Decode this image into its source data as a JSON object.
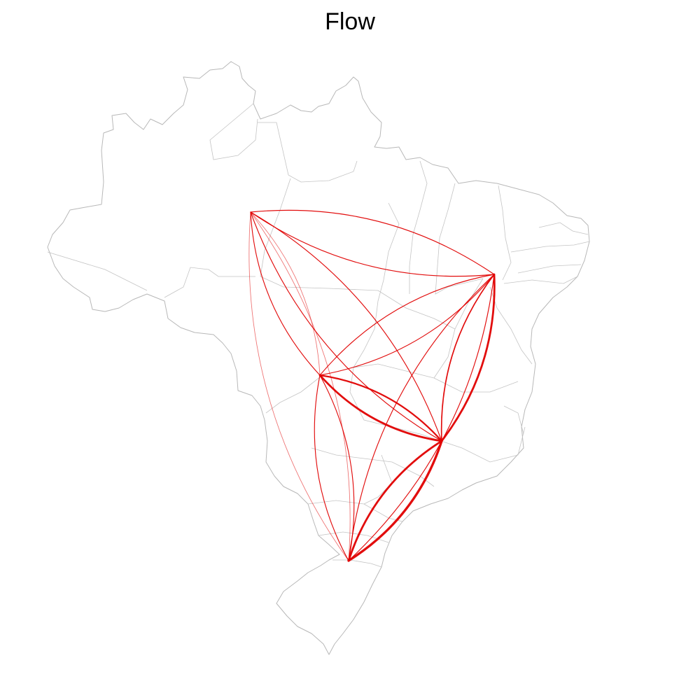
{
  "title": "Flow",
  "colors": {
    "flow": "#e00000",
    "border": "#b8b8b8",
    "background": "#ffffff"
  },
  "nodes": [
    {
      "id": "A"
    },
    {
      "id": "B"
    },
    {
      "id": "C"
    },
    {
      "id": "D"
    },
    {
      "id": "E"
    }
  ],
  "flows": [
    {
      "from": "E",
      "to": "D",
      "weight": 5
    },
    {
      "from": "D",
      "to": "E",
      "weight": 4
    },
    {
      "from": "D",
      "to": "B",
      "weight": 4
    },
    {
      "from": "B",
      "to": "D",
      "weight": 2
    },
    {
      "from": "C",
      "to": "D",
      "weight": 4
    },
    {
      "from": "D",
      "to": "C",
      "weight": 3
    },
    {
      "from": "A",
      "to": "D",
      "weight": 1
    },
    {
      "from": "D",
      "to": "A",
      "weight": 1
    },
    {
      "from": "A",
      "to": "C",
      "weight": 1
    },
    {
      "from": "C",
      "to": "A",
      "weight": 0.5
    },
    {
      "from": "A",
      "to": "B",
      "weight": 1
    },
    {
      "from": "B",
      "to": "A",
      "weight": 1
    },
    {
      "from": "A",
      "to": "E",
      "weight": 0.5
    },
    {
      "from": "E",
      "to": "A",
      "weight": 0.5
    },
    {
      "from": "B",
      "to": "C",
      "weight": 1
    },
    {
      "from": "C",
      "to": "B",
      "weight": 1
    },
    {
      "from": "B",
      "to": "E",
      "weight": 1
    },
    {
      "from": "E",
      "to": "B",
      "weight": 1
    },
    {
      "from": "C",
      "to": "E",
      "weight": 1
    },
    {
      "from": "E",
      "to": "C",
      "weight": 1
    }
  ]
}
